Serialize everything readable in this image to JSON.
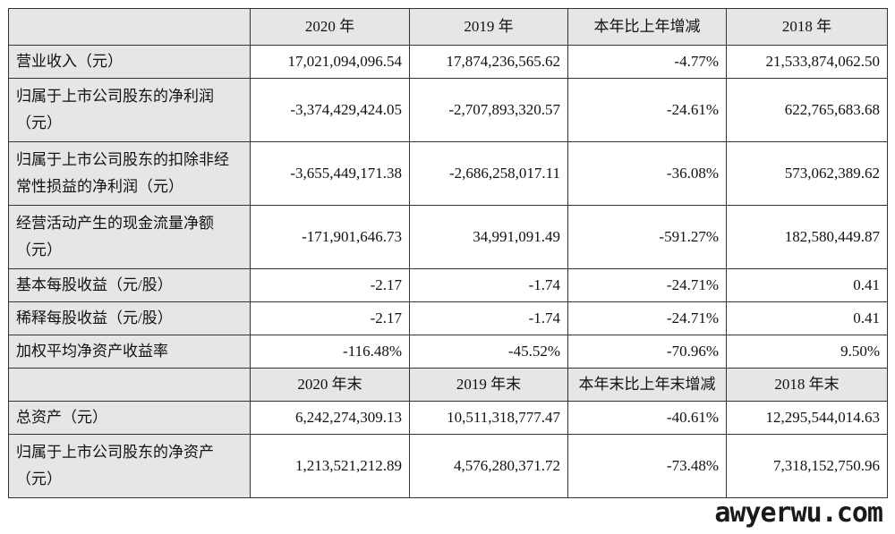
{
  "header1": [
    "2020 年",
    "2019 年",
    "本年比上年增减",
    "2018 年"
  ],
  "rows1": [
    {
      "label": "营业收入（元）",
      "values": [
        "17,021,094,096.54",
        "17,874,236,565.62",
        "-4.77%",
        "21,533,874,062.50"
      ]
    },
    {
      "label": "归属于上市公司股东的净利润（元）",
      "values": [
        "-3,374,429,424.05",
        "-2,707,893,320.57",
        "-24.61%",
        "622,765,683.68"
      ]
    },
    {
      "label": "归属于上市公司股东的扣除非经常性损益的净利润（元）",
      "values": [
        "-3,655,449,171.38",
        "-2,686,258,017.11",
        "-36.08%",
        "573,062,389.62"
      ]
    },
    {
      "label": "经营活动产生的现金流量净额（元）",
      "values": [
        "-171,901,646.73",
        "34,991,091.49",
        "-591.27%",
        "182,580,449.87"
      ]
    },
    {
      "label": "基本每股收益（元/股）",
      "values": [
        "-2.17",
        "-1.74",
        "-24.71%",
        "0.41"
      ]
    },
    {
      "label": "稀释每股收益（元/股）",
      "values": [
        "-2.17",
        "-1.74",
        "-24.71%",
        "0.41"
      ]
    },
    {
      "label": "加权平均净资产收益率",
      "values": [
        "-116.48%",
        "-45.52%",
        "-70.96%",
        "9.50%"
      ]
    }
  ],
  "header2": [
    "2020 年末",
    "2019 年末",
    "本年末比上年末增减",
    "2018 年末"
  ],
  "rows2": [
    {
      "label": "总资产（元）",
      "values": [
        "6,242,274,309.13",
        "10,511,318,777.47",
        "-40.61%",
        "12,295,544,014.63"
      ]
    },
    {
      "label": "归属于上市公司股东的净资产（元）",
      "values": [
        "1,213,521,212.89",
        "4,576,280,371.72",
        "-73.48%",
        "7,318,152,750.96"
      ]
    }
  ],
  "watermark": "awyerwu.com"
}
